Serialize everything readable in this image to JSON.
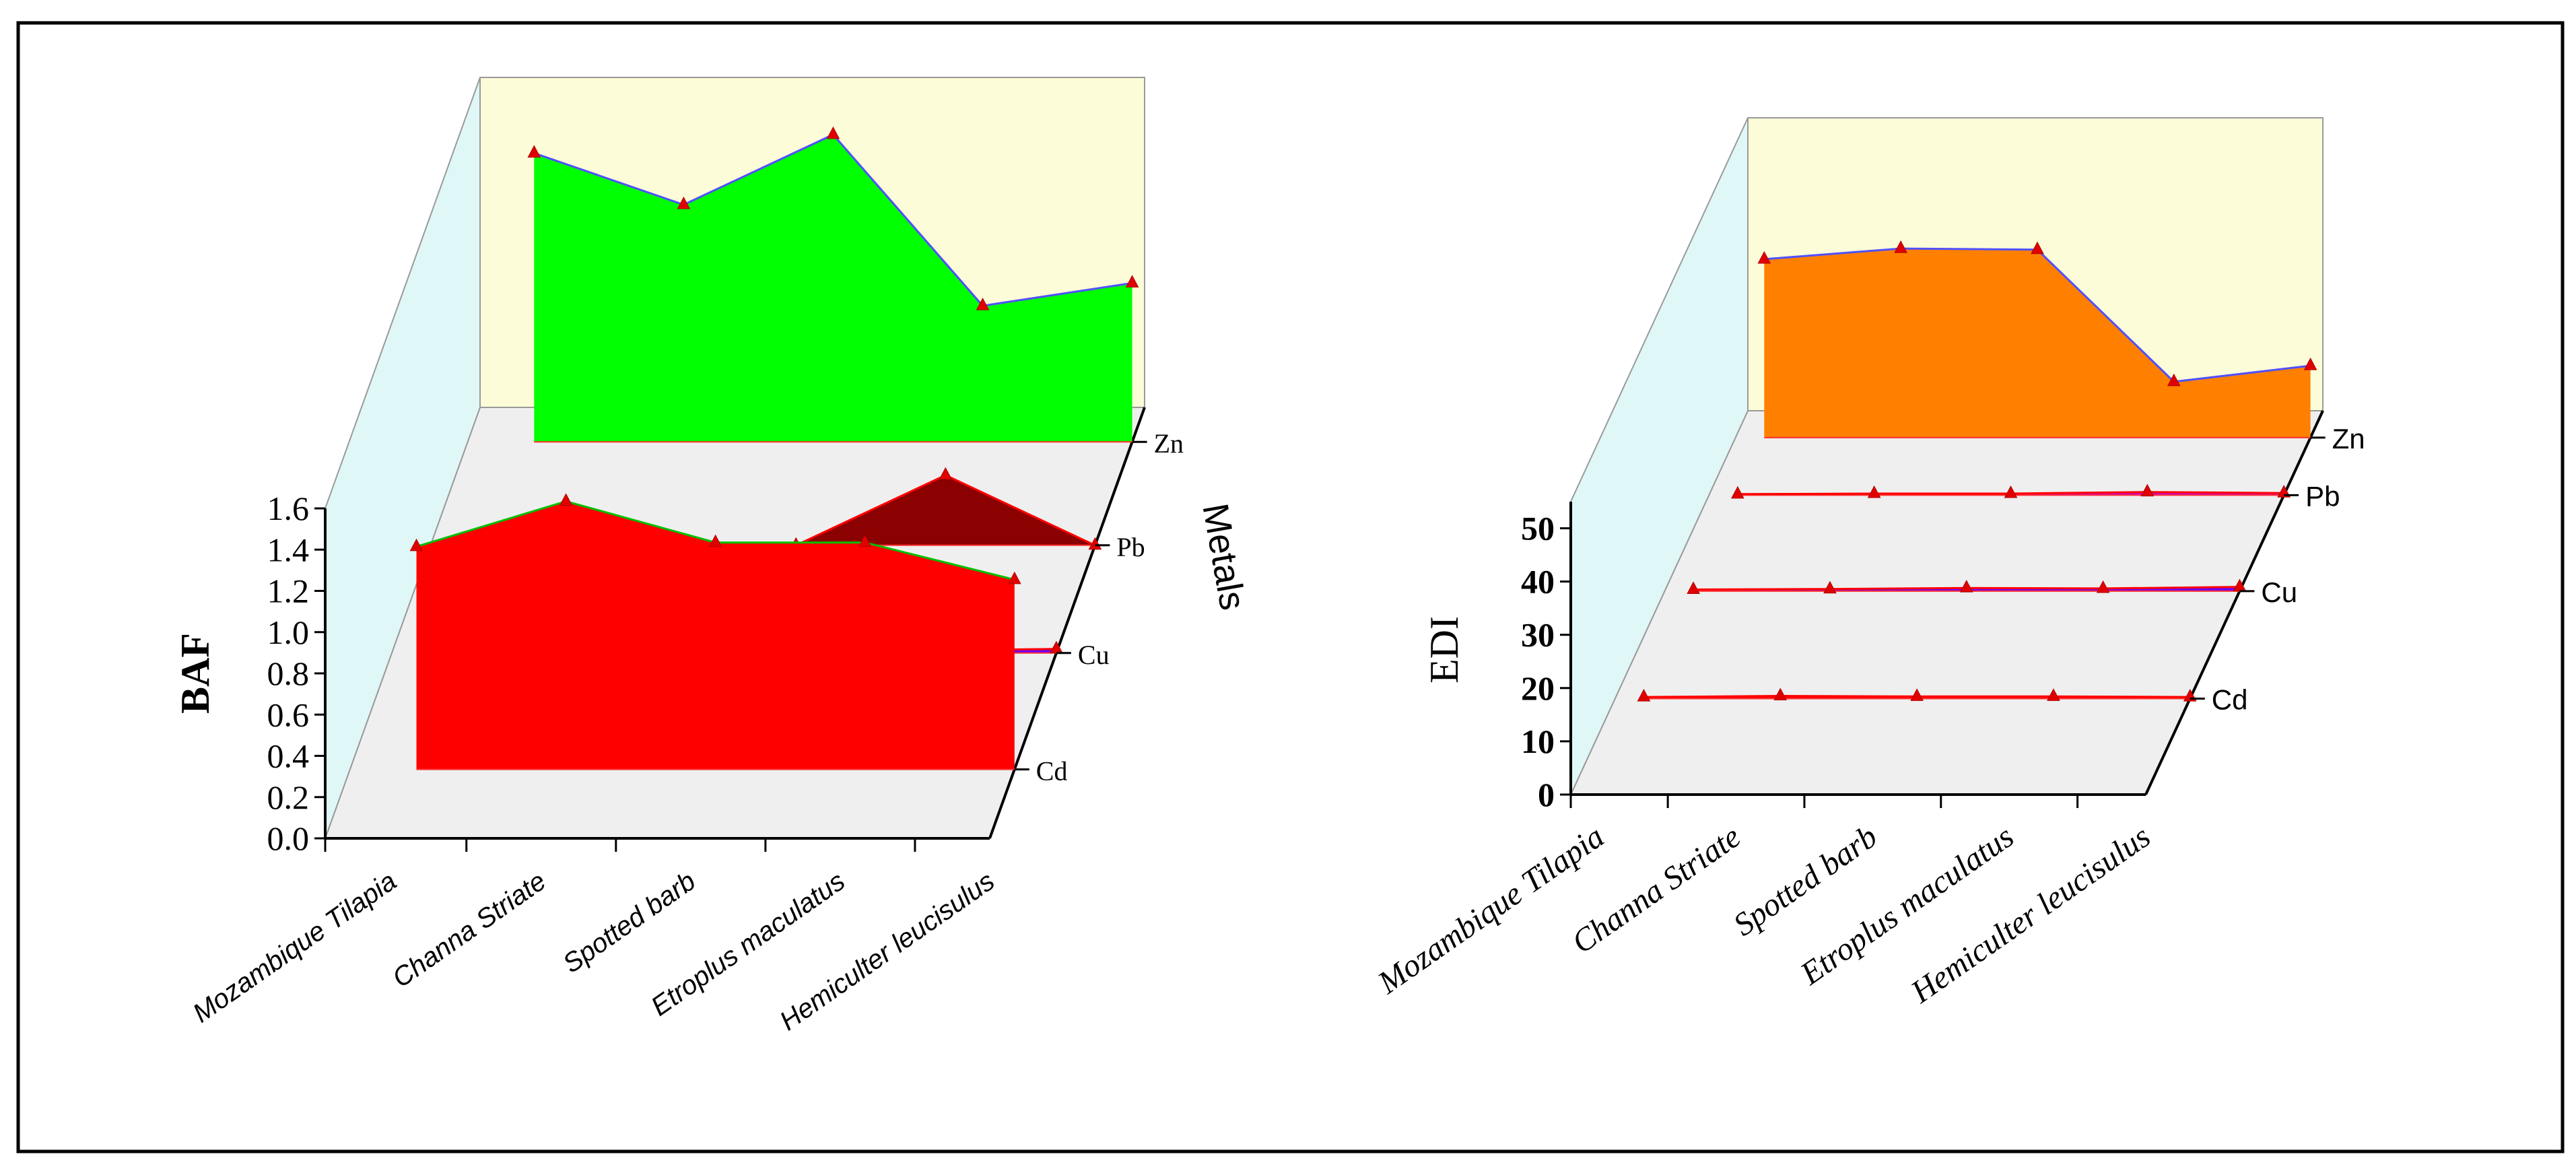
{
  "chart_data": [
    {
      "type": "area",
      "view": "3d-ribbon",
      "ylabel": "BAF",
      "zlabel": "Metals",
      "ylim": [
        0,
        1.6
      ],
      "yticks": [
        "0.0",
        "0.2",
        "0.4",
        "0.6",
        "0.8",
        "1.0",
        "1.2",
        "1.4",
        "1.6"
      ],
      "categories": [
        "Mozambique Tilapia",
        "Channa Striate",
        "Spotted barb",
        "Etroplus maculatus",
        "Hemiculter leucisulus"
      ],
      "series": [
        {
          "name": "Cd",
          "values": [
            1.08,
            1.3,
            1.1,
            1.1,
            0.92
          ],
          "color": "#ff0000",
          "edge": "#00c000"
        },
        {
          "name": "Cu",
          "values": [
            0.01,
            0.01,
            0.01,
            0.01,
            0.02
          ],
          "color": "#6e00ff",
          "edge": "#ff0000"
        },
        {
          "name": "Pb",
          "values": [
            0.0,
            0.0,
            0.0,
            0.34,
            0.0
          ],
          "color": "#8b0000",
          "edge": "#ff0000"
        },
        {
          "name": "Zn",
          "values": [
            1.4,
            1.15,
            1.49,
            0.66,
            0.77
          ],
          "color": "#00ff00",
          "edge": "#5050ff"
        }
      ]
    },
    {
      "type": "area",
      "view": "3d-ribbon",
      "ylabel": "EDI",
      "ylim": [
        0,
        55
      ],
      "yticks": [
        "0",
        "10",
        "20",
        "30",
        "40",
        "50"
      ],
      "categories": [
        "Mozambique Tilapia",
        "Channa Striate",
        "Spotted barb",
        "Etroplus maculatus",
        "Hemiculter leucisulus"
      ],
      "series": [
        {
          "name": "Cd",
          "values": [
            0.3,
            0.5,
            0.4,
            0.4,
            0.3
          ],
          "color": "#ff0000",
          "edge": "#ff0000"
        },
        {
          "name": "Cu",
          "values": [
            0.3,
            0.4,
            0.6,
            0.5,
            0.8
          ],
          "color": "#6e00ff",
          "edge": "#ff0000"
        },
        {
          "name": "Pb",
          "values": [
            0.2,
            0.3,
            0.3,
            0.6,
            0.4
          ],
          "color": "#cc00cc",
          "edge": "#ff0000"
        },
        {
          "name": "Zn",
          "values": [
            33.5,
            35.5,
            35.3,
            10.5,
            13.5
          ],
          "color": "#ff8000",
          "edge": "#5050ff"
        }
      ]
    }
  ]
}
